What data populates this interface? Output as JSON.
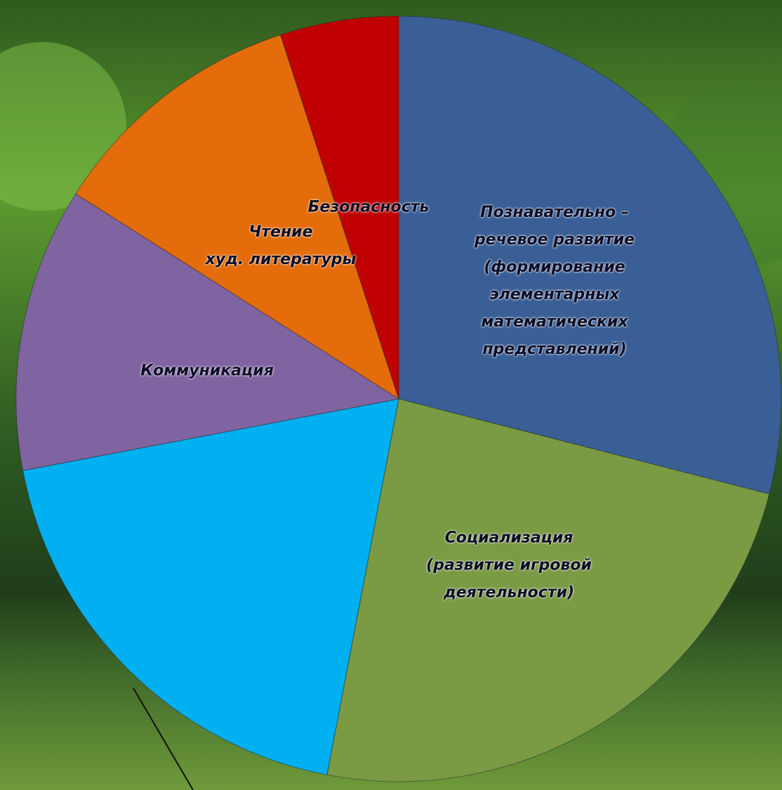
{
  "chart_data": {
    "type": "pie",
    "categories": [
      "Познавательно –\nречевое развитие\n(формирование\nэлементарных\nматематических\nпредставлений)",
      "Социализация\n(развитие игровой\nдеятельности)",
      null,
      "Коммуникация",
      "Чтение\nхуд. литературы",
      "Безопасность"
    ],
    "values": [
      29,
      24,
      19,
      12,
      11,
      5
    ],
    "colors": [
      "#3a5f96",
      "#7a9a44",
      "#00b0f0",
      "#8064a2",
      "#e46c0a",
      "#c00000"
    ]
  }
}
